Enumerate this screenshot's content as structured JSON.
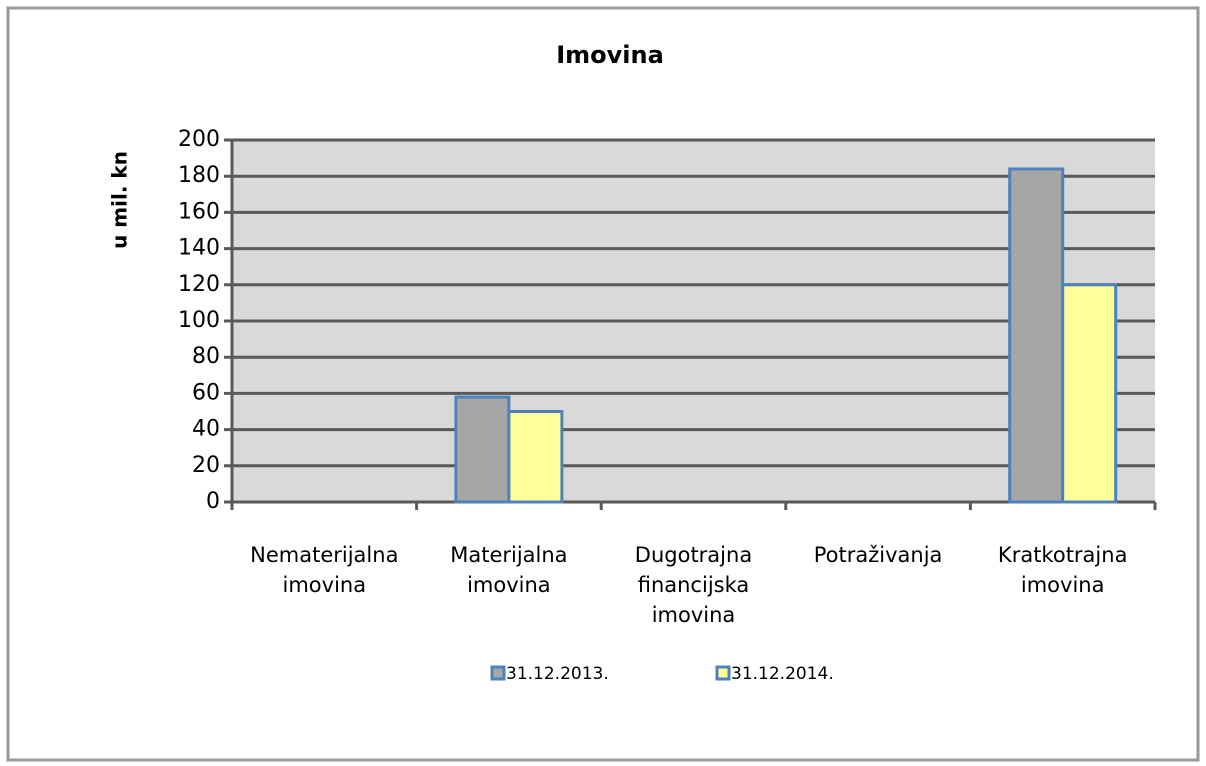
{
  "chart_data": {
    "type": "bar",
    "title": "Imovina",
    "y_label": "u mil. kn",
    "categories": [
      "Nematerijalna imovina",
      "Materijalna imovina",
      "Dugotrajna financijska imovina",
      "Potraživanja",
      "Kratkotrajna imovina"
    ],
    "series": [
      {
        "name": "31.12.2013.",
        "color": "#a6a6a6",
        "values": [
          0,
          58,
          0,
          0,
          184
        ]
      },
      {
        "name": "31.12.2014.",
        "color": "#ffff99",
        "values": [
          0,
          50,
          0,
          0,
          120
        ]
      }
    ],
    "edge_color": "#4f81bd",
    "ylim": [
      0,
      200
    ],
    "yticks": [
      0,
      20,
      40,
      60,
      80,
      100,
      120,
      140,
      160,
      180,
      200
    ],
    "grid": true,
    "legend": "bottom"
  }
}
